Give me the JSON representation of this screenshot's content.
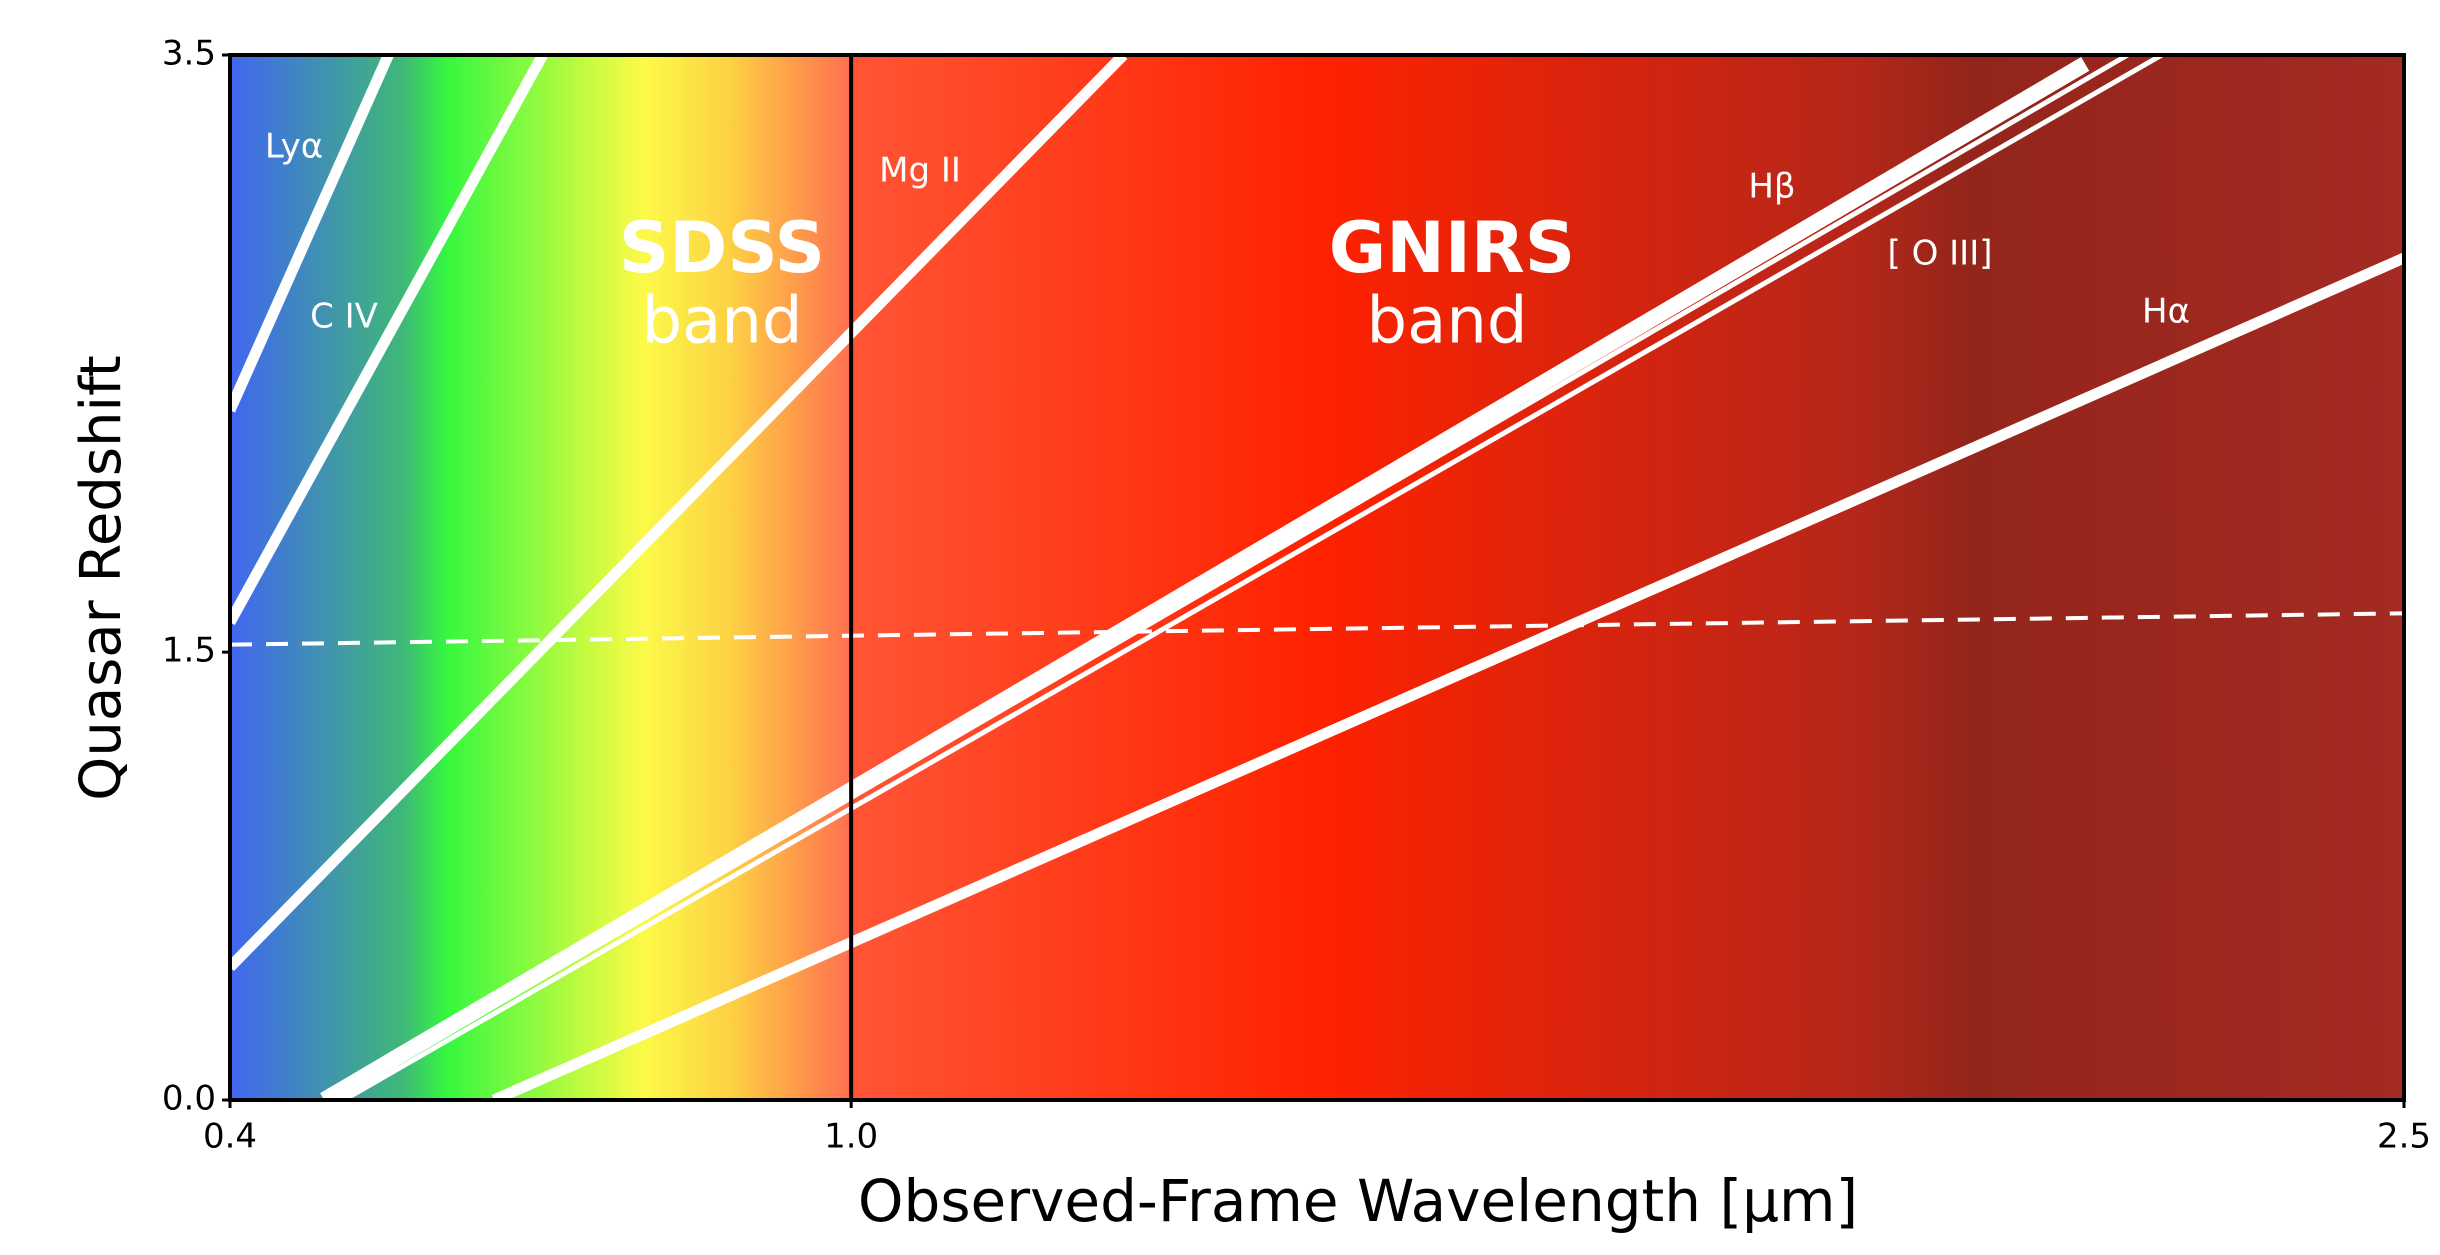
{
  "chart_data": {
    "type": "line",
    "xlabel": "Observed-Frame Wavelength [μm]",
    "ylabel": "Quasar Redshift",
    "annotations": [
      "SDSS",
      "band",
      "GNIRS",
      "band"
    ],
    "xlim": [
      0.4,
      2.5
    ],
    "xticks": [
      0.4,
      {
        "value": 1,
        "label": "1.0"
      },
      2.5
    ],
    "ylim": [
      0,
      3.5
    ],
    "yticks": [
      {
        "value": 0,
        "label": "0.0"
      },
      1.5,
      3.5
    ],
    "vline": {
      "value": 1,
      "color": "#000000"
    },
    "series": [
      {
        "name": "Lyα",
        "color": "#ffffff",
        "x": [
          0.4,
          0.553
        ],
        "values": [
          2.31,
          3.5
        ]
      },
      {
        "name": "C IV",
        "color": "#ffffff",
        "x": [
          0.4,
          0.702
        ],
        "values": [
          1.6,
          3.5
        ]
      },
      {
        "name": "Mg II",
        "color": "#ffffff",
        "x": [
          0.4,
          1.263
        ],
        "values": [
          0.445,
          3.5
        ]
      },
      {
        "name": "Hβ",
        "color": "#ffffff",
        "x": [
          0.491,
          2.192
        ],
        "values": [
          0,
          3.47
        ]
      },
      {
        "name": "[ O III]",
        "color": "#ffffff",
        "x": [
          0.498,
          2.233
        ],
        "values": [
          0,
          3.5
        ]
      },
      {
        "color": "#ffffff",
        "x": [
          0.51,
          2.266
        ],
        "values": [
          0,
          3.5
        ]
      },
      {
        "name": "Hα",
        "color": "#ffffff",
        "x": [
          0.655,
          2.5
        ],
        "values": [
          0,
          2.82
        ]
      },
      {
        "color": "#ffffff",
        "dashed": true,
        "x": [
          0.4,
          2.5
        ],
        "values": [
          1.525,
          1.63
        ]
      }
    ]
  }
}
